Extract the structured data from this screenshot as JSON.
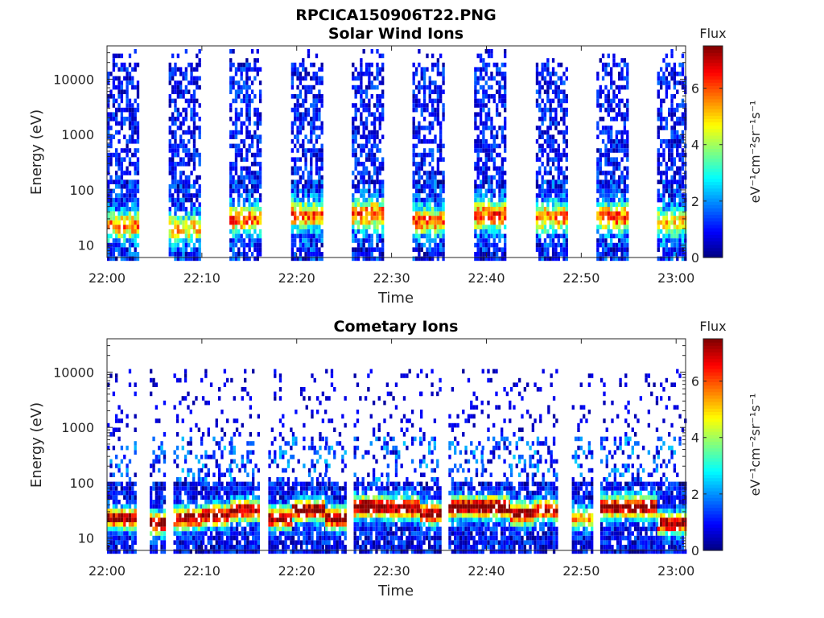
{
  "figure_title": "RPCICA150906T22.PNG",
  "chart_data": [
    {
      "type": "heatmap",
      "title": "Solar Wind Ions",
      "xlabel": "Time",
      "ylabel": "Energy (eV)",
      "x_ticks": [
        "22:00",
        "22:10",
        "22:20",
        "22:30",
        "22:40",
        "22:50",
        "23:00"
      ],
      "y_ticks": [
        "10",
        "100",
        "1000",
        "10000"
      ],
      "y_scale": "log",
      "ylim": [
        6,
        40000
      ],
      "xlim": [
        "22:00",
        "23:01"
      ],
      "colorbar": {
        "title": "Flux",
        "label": "eV⁻¹cm⁻²sr⁻¹s⁻¹",
        "ticks": [
          "0",
          "2",
          "4",
          "6"
        ],
        "range": [
          0,
          7.5
        ]
      },
      "scans": [
        {
          "start_min": 0.0,
          "end_min": 3.3,
          "peak_energy_ev": 25,
          "peak_flux": 4.5
        },
        {
          "start_min": 6.5,
          "end_min": 9.7,
          "peak_energy_ev": 22,
          "peak_flux": 4.0
        },
        {
          "start_min": 12.9,
          "end_min": 16.1,
          "peak_energy_ev": 32,
          "peak_flux": 4.8
        },
        {
          "start_min": 19.4,
          "end_min": 22.6,
          "peak_energy_ev": 38,
          "peak_flux": 4.8
        },
        {
          "start_min": 25.8,
          "end_min": 29.0,
          "peak_energy_ev": 40,
          "peak_flux": 5.0
        },
        {
          "start_min": 32.2,
          "end_min": 35.4,
          "peak_energy_ev": 30,
          "peak_flux": 4.8
        },
        {
          "start_min": 38.7,
          "end_min": 41.9,
          "peak_energy_ev": 38,
          "peak_flux": 5.0
        },
        {
          "start_min": 45.2,
          "end_min": 48.4,
          "peak_energy_ev": 35,
          "peak_flux": 4.6
        },
        {
          "start_min": 51.6,
          "end_min": 54.8,
          "peak_energy_ev": 35,
          "peak_flux": 5.0
        },
        {
          "start_min": 58.0,
          "end_min": 61.0,
          "peak_energy_ev": 28,
          "peak_flux": 4.0
        }
      ]
    },
    {
      "type": "heatmap",
      "title": "Cometary Ions",
      "xlabel": "Time",
      "ylabel": "Energy (eV)",
      "x_ticks": [
        "22:00",
        "22:10",
        "22:20",
        "22:30",
        "22:40",
        "22:50",
        "23:00"
      ],
      "y_ticks": [
        "10",
        "100",
        "1000",
        "10000"
      ],
      "y_scale": "log",
      "ylim": [
        6,
        40000
      ],
      "xlim": [
        "22:00",
        "23:01"
      ],
      "colorbar": {
        "title": "Flux",
        "label": "eV⁻¹cm⁻²sr⁻¹s⁻¹",
        "ticks": [
          "0",
          "2",
          "4",
          "6"
        ],
        "range": [
          0,
          7.5
        ]
      },
      "scans": [
        {
          "start_min": 0.0,
          "end_min": 3.0,
          "peak_energy_ev": 25,
          "peak_flux": 6.5
        },
        {
          "start_min": 4.5,
          "end_min": 6.0,
          "peak_energy_ev": 20,
          "peak_flux": 6.8
        },
        {
          "start_min": 7.0,
          "end_min": 10.0,
          "peak_energy_ev": 25,
          "peak_flux": 6.5
        },
        {
          "start_min": 10.0,
          "end_min": 13.0,
          "peak_energy_ev": 28,
          "peak_flux": 6.8
        },
        {
          "start_min": 13.0,
          "end_min": 16.0,
          "peak_energy_ev": 35,
          "peak_flux": 6.5
        },
        {
          "start_min": 17.0,
          "end_min": 19.5,
          "peak_energy_ev": 25,
          "peak_flux": 6.8
        },
        {
          "start_min": 19.5,
          "end_min": 23.0,
          "peak_energy_ev": 35,
          "peak_flux": 6.8
        },
        {
          "start_min": 23.0,
          "end_min": 25.0,
          "peak_energy_ev": 25,
          "peak_flux": 6.8
        },
        {
          "start_min": 26.0,
          "end_min": 29.5,
          "peak_energy_ev": 40,
          "peak_flux": 7.2
        },
        {
          "start_min": 29.5,
          "end_min": 33.0,
          "peak_energy_ev": 38,
          "peak_flux": 6.8
        },
        {
          "start_min": 33.0,
          "end_min": 35.0,
          "peak_energy_ev": 30,
          "peak_flux": 6.5
        },
        {
          "start_min": 36.0,
          "end_min": 39.5,
          "peak_energy_ev": 40,
          "peak_flux": 7.2
        },
        {
          "start_min": 39.5,
          "end_min": 42.5,
          "peak_energy_ev": 40,
          "peak_flux": 7.2
        },
        {
          "start_min": 42.5,
          "end_min": 45.0,
          "peak_energy_ev": 30,
          "peak_flux": 6.8
        },
        {
          "start_min": 45.0,
          "end_min": 47.5,
          "peak_energy_ev": 35,
          "peak_flux": 6.2
        },
        {
          "start_min": 49.0,
          "end_min": 51.0,
          "peak_energy_ev": 25,
          "peak_flux": 4.5
        },
        {
          "start_min": 52.0,
          "end_min": 55.0,
          "peak_energy_ev": 40,
          "peak_flux": 7.0
        },
        {
          "start_min": 55.0,
          "end_min": 58.0,
          "peak_energy_ev": 40,
          "peak_flux": 7.0
        },
        {
          "start_min": 58.0,
          "end_min": 61.0,
          "peak_energy_ev": 20,
          "peak_flux": 6.5
        }
      ]
    }
  ]
}
